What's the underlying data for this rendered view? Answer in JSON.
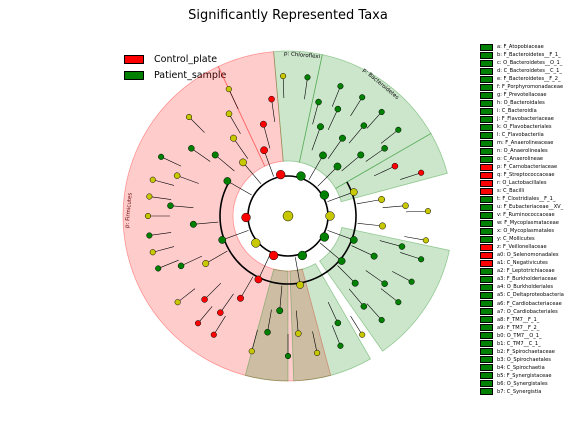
{
  "title": "Significantly Represented Taxa",
  "colors": {
    "control": "#ff0000",
    "patient": "#008000",
    "neutral": "#c8c800"
  },
  "legend": [
    {
      "label": "Control_plate",
      "group": "control"
    },
    {
      "label": "Patient_sample",
      "group": "patient"
    }
  ],
  "clade_labels": {
    "firmicutes": "p: Firmicutes",
    "chloroflexi": "p: Chloroflexi",
    "bacteroidetes": "p: Bacteroidetes"
  },
  "taxa": [
    {
      "code": "a",
      "name": "a: F_Atopobiaceae",
      "group": "patient"
    },
    {
      "code": "b",
      "name": "b: F_Bacteroidetes__F_1_",
      "group": "patient"
    },
    {
      "code": "c",
      "name": "c: O_Bacteroidetes__O_1_",
      "group": "patient"
    },
    {
      "code": "d",
      "name": "d: C_Bacteroidetes__C_1_",
      "group": "patient"
    },
    {
      "code": "e",
      "name": "e: F_Bacteroidetes__F_2_",
      "group": "patient"
    },
    {
      "code": "f",
      "name": "f: F_Porphyromonadaceae",
      "group": "patient"
    },
    {
      "code": "g",
      "name": "g: F_Prevotellaceae",
      "group": "patient"
    },
    {
      "code": "h",
      "name": "h: O_Bacteroidales",
      "group": "patient"
    },
    {
      "code": "i",
      "name": "i: C_Bacteroidia",
      "group": "patient"
    },
    {
      "code": "j",
      "name": "j: F_Flavobacteriaceae",
      "group": "patient"
    },
    {
      "code": "k",
      "name": "k: O_Flavobacteriales",
      "group": "patient"
    },
    {
      "code": "l",
      "name": "l: C_Flavobacteriia",
      "group": "patient"
    },
    {
      "code": "m",
      "name": "m: F_Anaerolineaceae",
      "group": "patient"
    },
    {
      "code": "n",
      "name": "n: O_Anaerolineales",
      "group": "patient"
    },
    {
      "code": "o",
      "name": "o: C_Anaerolineae",
      "group": "patient"
    },
    {
      "code": "p",
      "name": "p: F_Carnobacteriaceae",
      "group": "control"
    },
    {
      "code": "q",
      "name": "q: F_Streptococcaceae",
      "group": "control"
    },
    {
      "code": "r",
      "name": "r: O_Lactobacillales",
      "group": "control"
    },
    {
      "code": "s",
      "name": "s: C_Bacilli",
      "group": "control"
    },
    {
      "code": "t",
      "name": "t: F_Clostridiales__F_1_",
      "group": "patient"
    },
    {
      "code": "u",
      "name": "u: F_Eubacteriaceae__XV_",
      "group": "patient"
    },
    {
      "code": "v",
      "name": "v: F_Ruminococcaceae",
      "group": "patient"
    },
    {
      "code": "w",
      "name": "w: F_Mycoplasmataceae",
      "group": "patient"
    },
    {
      "code": "x",
      "name": "x: O_Mycoplasmatales",
      "group": "patient"
    },
    {
      "code": "y",
      "name": "y: C_Mollicutes",
      "group": "patient"
    },
    {
      "code": "z",
      "name": "z: F_Veillonellaceae",
      "group": "control"
    },
    {
      "code": "a0",
      "name": "a0: O_Selenomonadales",
      "group": "control"
    },
    {
      "code": "a1",
      "name": "a1: C_Negativicutes",
      "group": "control"
    },
    {
      "code": "a2",
      "name": "a2: F_Leptotrichiaceae",
      "group": "patient"
    },
    {
      "code": "a3",
      "name": "a3: F_Burkholderiaceae",
      "group": "patient"
    },
    {
      "code": "a4",
      "name": "a4: O_Burkholderiales",
      "group": "patient"
    },
    {
      "code": "a5",
      "name": "a5: C_Deltaproteobacteria",
      "group": "patient"
    },
    {
      "code": "a6",
      "name": "a6: F_Cardiobacteriaceae",
      "group": "patient"
    },
    {
      "code": "a7",
      "name": "a7: O_Cardiobacteriales",
      "group": "patient"
    },
    {
      "code": "a8",
      "name": "a8: F_TM7__F_1_",
      "group": "patient"
    },
    {
      "code": "a9",
      "name": "a9: F_TM7__F_2_",
      "group": "patient"
    },
    {
      "code": "b0",
      "name": "b0: O_TM7__O_1_",
      "group": "patient"
    },
    {
      "code": "b1",
      "name": "b1: C_TM7__C_1_",
      "group": "patient"
    },
    {
      "code": "b2",
      "name": "b2: F_Spirochaetaceae",
      "group": "patient"
    },
    {
      "code": "b3",
      "name": "b3: O_Spirochaetales",
      "group": "patient"
    },
    {
      "code": "b4",
      "name": "b4: C_Spirochaetia",
      "group": "patient"
    },
    {
      "code": "b5",
      "name": "b5: F_Synergistaceae",
      "group": "patient"
    },
    {
      "code": "b6",
      "name": "b6: O_Synergistales",
      "group": "patient"
    },
    {
      "code": "b7",
      "name": "b7: C_Synergistia",
      "group": "patient"
    }
  ],
  "sectors": [
    {
      "a1": 165,
      "a2": 335,
      "group": "control"
    },
    {
      "a1": 335,
      "a2": 355,
      "group": "control"
    },
    {
      "a1": 12,
      "a2": 60,
      "group": "patient"
    },
    {
      "a1": 355,
      "a2": 12,
      "group": "patient"
    },
    {
      "a1": 60,
      "a2": 75,
      "group": "patient"
    },
    {
      "a1": 102,
      "a2": 145,
      "group": "patient"
    },
    {
      "a1": 150,
      "a2": 178,
      "group": "patient"
    },
    {
      "a1": 180,
      "a2": 195,
      "group": "patient"
    }
  ],
  "nodes": [
    {
      "ang": 0,
      "lvl": 0,
      "group": "neutral"
    },
    {
      "ang": 268,
      "lvl": 1,
      "group": "control"
    },
    {
      "ang": 18,
      "lvl": 1,
      "group": "patient"
    },
    {
      "ang": 350,
      "lvl": 1,
      "group": "control"
    },
    {
      "ang": 200,
      "lvl": 1,
      "group": "control"
    },
    {
      "ang": 120,
      "lvl": 1,
      "group": "patient"
    },
    {
      "ang": 60,
      "lvl": 1,
      "group": "patient"
    },
    {
      "ang": 160,
      "lvl": 1,
      "group": "patient"
    },
    {
      "ang": 230,
      "lvl": 1,
      "group": "neutral"
    },
    {
      "ang": 90,
      "lvl": 1,
      "group": "neutral"
    },
    {
      "ang": 300,
      "lvl": 2,
      "group": "patient"
    },
    {
      "ang": 320,
      "lvl": 2,
      "group": "neutral"
    },
    {
      "ang": 340,
      "lvl": 2,
      "group": "control"
    },
    {
      "ang": 30,
      "lvl": 2,
      "group": "patient"
    },
    {
      "ang": 45,
      "lvl": 2,
      "group": "patient"
    },
    {
      "ang": 110,
      "lvl": 2,
      "group": "patient"
    },
    {
      "ang": 130,
      "lvl": 2,
      "group": "patient"
    },
    {
      "ang": 170,
      "lvl": 2,
      "group": "neutral"
    },
    {
      "ang": 205,
      "lvl": 2,
      "group": "control"
    },
    {
      "ang": 250,
      "lvl": 2,
      "group": "patient"
    },
    {
      "ang": 70,
      "lvl": 2,
      "group": "neutral"
    },
    {
      "ang": 310,
      "lvl": 3,
      "group": "patient"
    },
    {
      "ang": 325,
      "lvl": 3,
      "group": "neutral"
    },
    {
      "ang": 345,
      "lvl": 3,
      "group": "control"
    },
    {
      "ang": 20,
      "lvl": 3,
      "group": "patient"
    },
    {
      "ang": 35,
      "lvl": 3,
      "group": "patient"
    },
    {
      "ang": 50,
      "lvl": 3,
      "group": "patient"
    },
    {
      "ang": 115,
      "lvl": 3,
      "group": "patient"
    },
    {
      "ang": 135,
      "lvl": 3,
      "group": "patient"
    },
    {
      "ang": 185,
      "lvl": 3,
      "group": "patient"
    },
    {
      "ang": 210,
      "lvl": 3,
      "group": "control"
    },
    {
      "ang": 240,
      "lvl": 3,
      "group": "neutral"
    },
    {
      "ang": 265,
      "lvl": 3,
      "group": "patient"
    },
    {
      "ang": 80,
      "lvl": 3,
      "group": "neutral"
    },
    {
      "ang": 96,
      "lvl": 3,
      "group": "neutral"
    },
    {
      "ang": 290,
      "lvl": 4,
      "group": "neutral"
    },
    {
      "ang": 305,
      "lvl": 4,
      "group": "patient"
    },
    {
      "ang": 330,
      "lvl": 4,
      "group": "neutral"
    },
    {
      "ang": 352,
      "lvl": 4,
      "group": "control"
    },
    {
      "ang": 15,
      "lvl": 4,
      "group": "patient"
    },
    {
      "ang": 25,
      "lvl": 4,
      "group": "patient"
    },
    {
      "ang": 40,
      "lvl": 4,
      "group": "patient"
    },
    {
      "ang": 55,
      "lvl": 4,
      "group": "patient"
    },
    {
      "ang": 105,
      "lvl": 4,
      "group": "patient"
    },
    {
      "ang": 125,
      "lvl": 4,
      "group": "patient"
    },
    {
      "ang": 140,
      "lvl": 4,
      "group": "patient"
    },
    {
      "ang": 155,
      "lvl": 4,
      "group": "patient"
    },
    {
      "ang": 175,
      "lvl": 4,
      "group": "neutral"
    },
    {
      "ang": 190,
      "lvl": 4,
      "group": "patient"
    },
    {
      "ang": 215,
      "lvl": 4,
      "group": "control"
    },
    {
      "ang": 225,
      "lvl": 4,
      "group": "control"
    },
    {
      "ang": 245,
      "lvl": 4,
      "group": "patient"
    },
    {
      "ang": 275,
      "lvl": 4,
      "group": "patient"
    },
    {
      "ang": 65,
      "lvl": 4,
      "group": "control"
    },
    {
      "ang": 85,
      "lvl": 4,
      "group": "neutral"
    },
    {
      "ang": 285,
      "lvl": 5,
      "group": "neutral"
    },
    {
      "ang": 295,
      "lvl": 5,
      "group": "patient"
    },
    {
      "ang": 315,
      "lvl": 5,
      "group": "neutral"
    },
    {
      "ang": 335,
      "lvl": 5,
      "group": "neutral"
    },
    {
      "ang": 358,
      "lvl": 5,
      "group": "neutral"
    },
    {
      "ang": 8,
      "lvl": 5,
      "group": "patient"
    },
    {
      "ang": 22,
      "lvl": 5,
      "group": "patient"
    },
    {
      "ang": 32,
      "lvl": 5,
      "group": "patient"
    },
    {
      "ang": 42,
      "lvl": 5,
      "group": "patient"
    },
    {
      "ang": 52,
      "lvl": 5,
      "group": "patient"
    },
    {
      "ang": 100,
      "lvl": 5,
      "group": "neutral"
    },
    {
      "ang": 108,
      "lvl": 5,
      "group": "patient"
    },
    {
      "ang": 118,
      "lvl": 5,
      "group": "patient"
    },
    {
      "ang": 128,
      "lvl": 5,
      "group": "patient"
    },
    {
      "ang": 138,
      "lvl": 5,
      "group": "patient"
    },
    {
      "ang": 148,
      "lvl": 5,
      "group": "neutral"
    },
    {
      "ang": 158,
      "lvl": 5,
      "group": "patient"
    },
    {
      "ang": 168,
      "lvl": 5,
      "group": "neutral"
    },
    {
      "ang": 180,
      "lvl": 5,
      "group": "patient"
    },
    {
      "ang": 195,
      "lvl": 5,
      "group": "neutral"
    },
    {
      "ang": 212,
      "lvl": 5,
      "group": "control"
    },
    {
      "ang": 220,
      "lvl": 5,
      "group": "control"
    },
    {
      "ang": 232,
      "lvl": 5,
      "group": "neutral"
    },
    {
      "ang": 248,
      "lvl": 5,
      "group": "patient"
    },
    {
      "ang": 255,
      "lvl": 5,
      "group": "neutral"
    },
    {
      "ang": 262,
      "lvl": 5,
      "group": "patient"
    },
    {
      "ang": 270,
      "lvl": 5,
      "group": "neutral"
    },
    {
      "ang": 278,
      "lvl": 5,
      "group": "neutral"
    },
    {
      "ang": 72,
      "lvl": 5,
      "group": "control"
    },
    {
      "ang": 88,
      "lvl": 5,
      "group": "neutral"
    }
  ]
}
